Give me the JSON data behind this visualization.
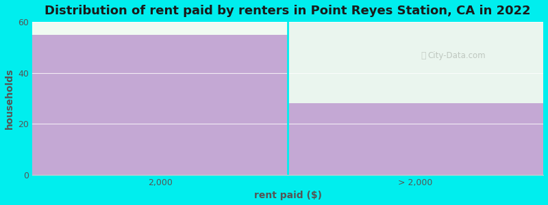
{
  "categories": [
    "2,000",
    "> 2,000"
  ],
  "values": [
    55,
    28
  ],
  "bar_color": "#c4a8d4",
  "above_bar2_color": "#eaf5ee",
  "background_color": "#00eeee",
  "plot_bg_color": "#f0faf2",
  "title": "Distribution of rent paid by renters in Point Reyes Station, CA in 2022",
  "xlabel": "rent paid ($)",
  "ylabel": "households",
  "ylim": [
    0,
    60
  ],
  "yticks": [
    0,
    20,
    40,
    60
  ],
  "title_fontsize": 13,
  "axis_label_fontsize": 10,
  "tick_fontsize": 9,
  "watermark": "City-Data.com"
}
